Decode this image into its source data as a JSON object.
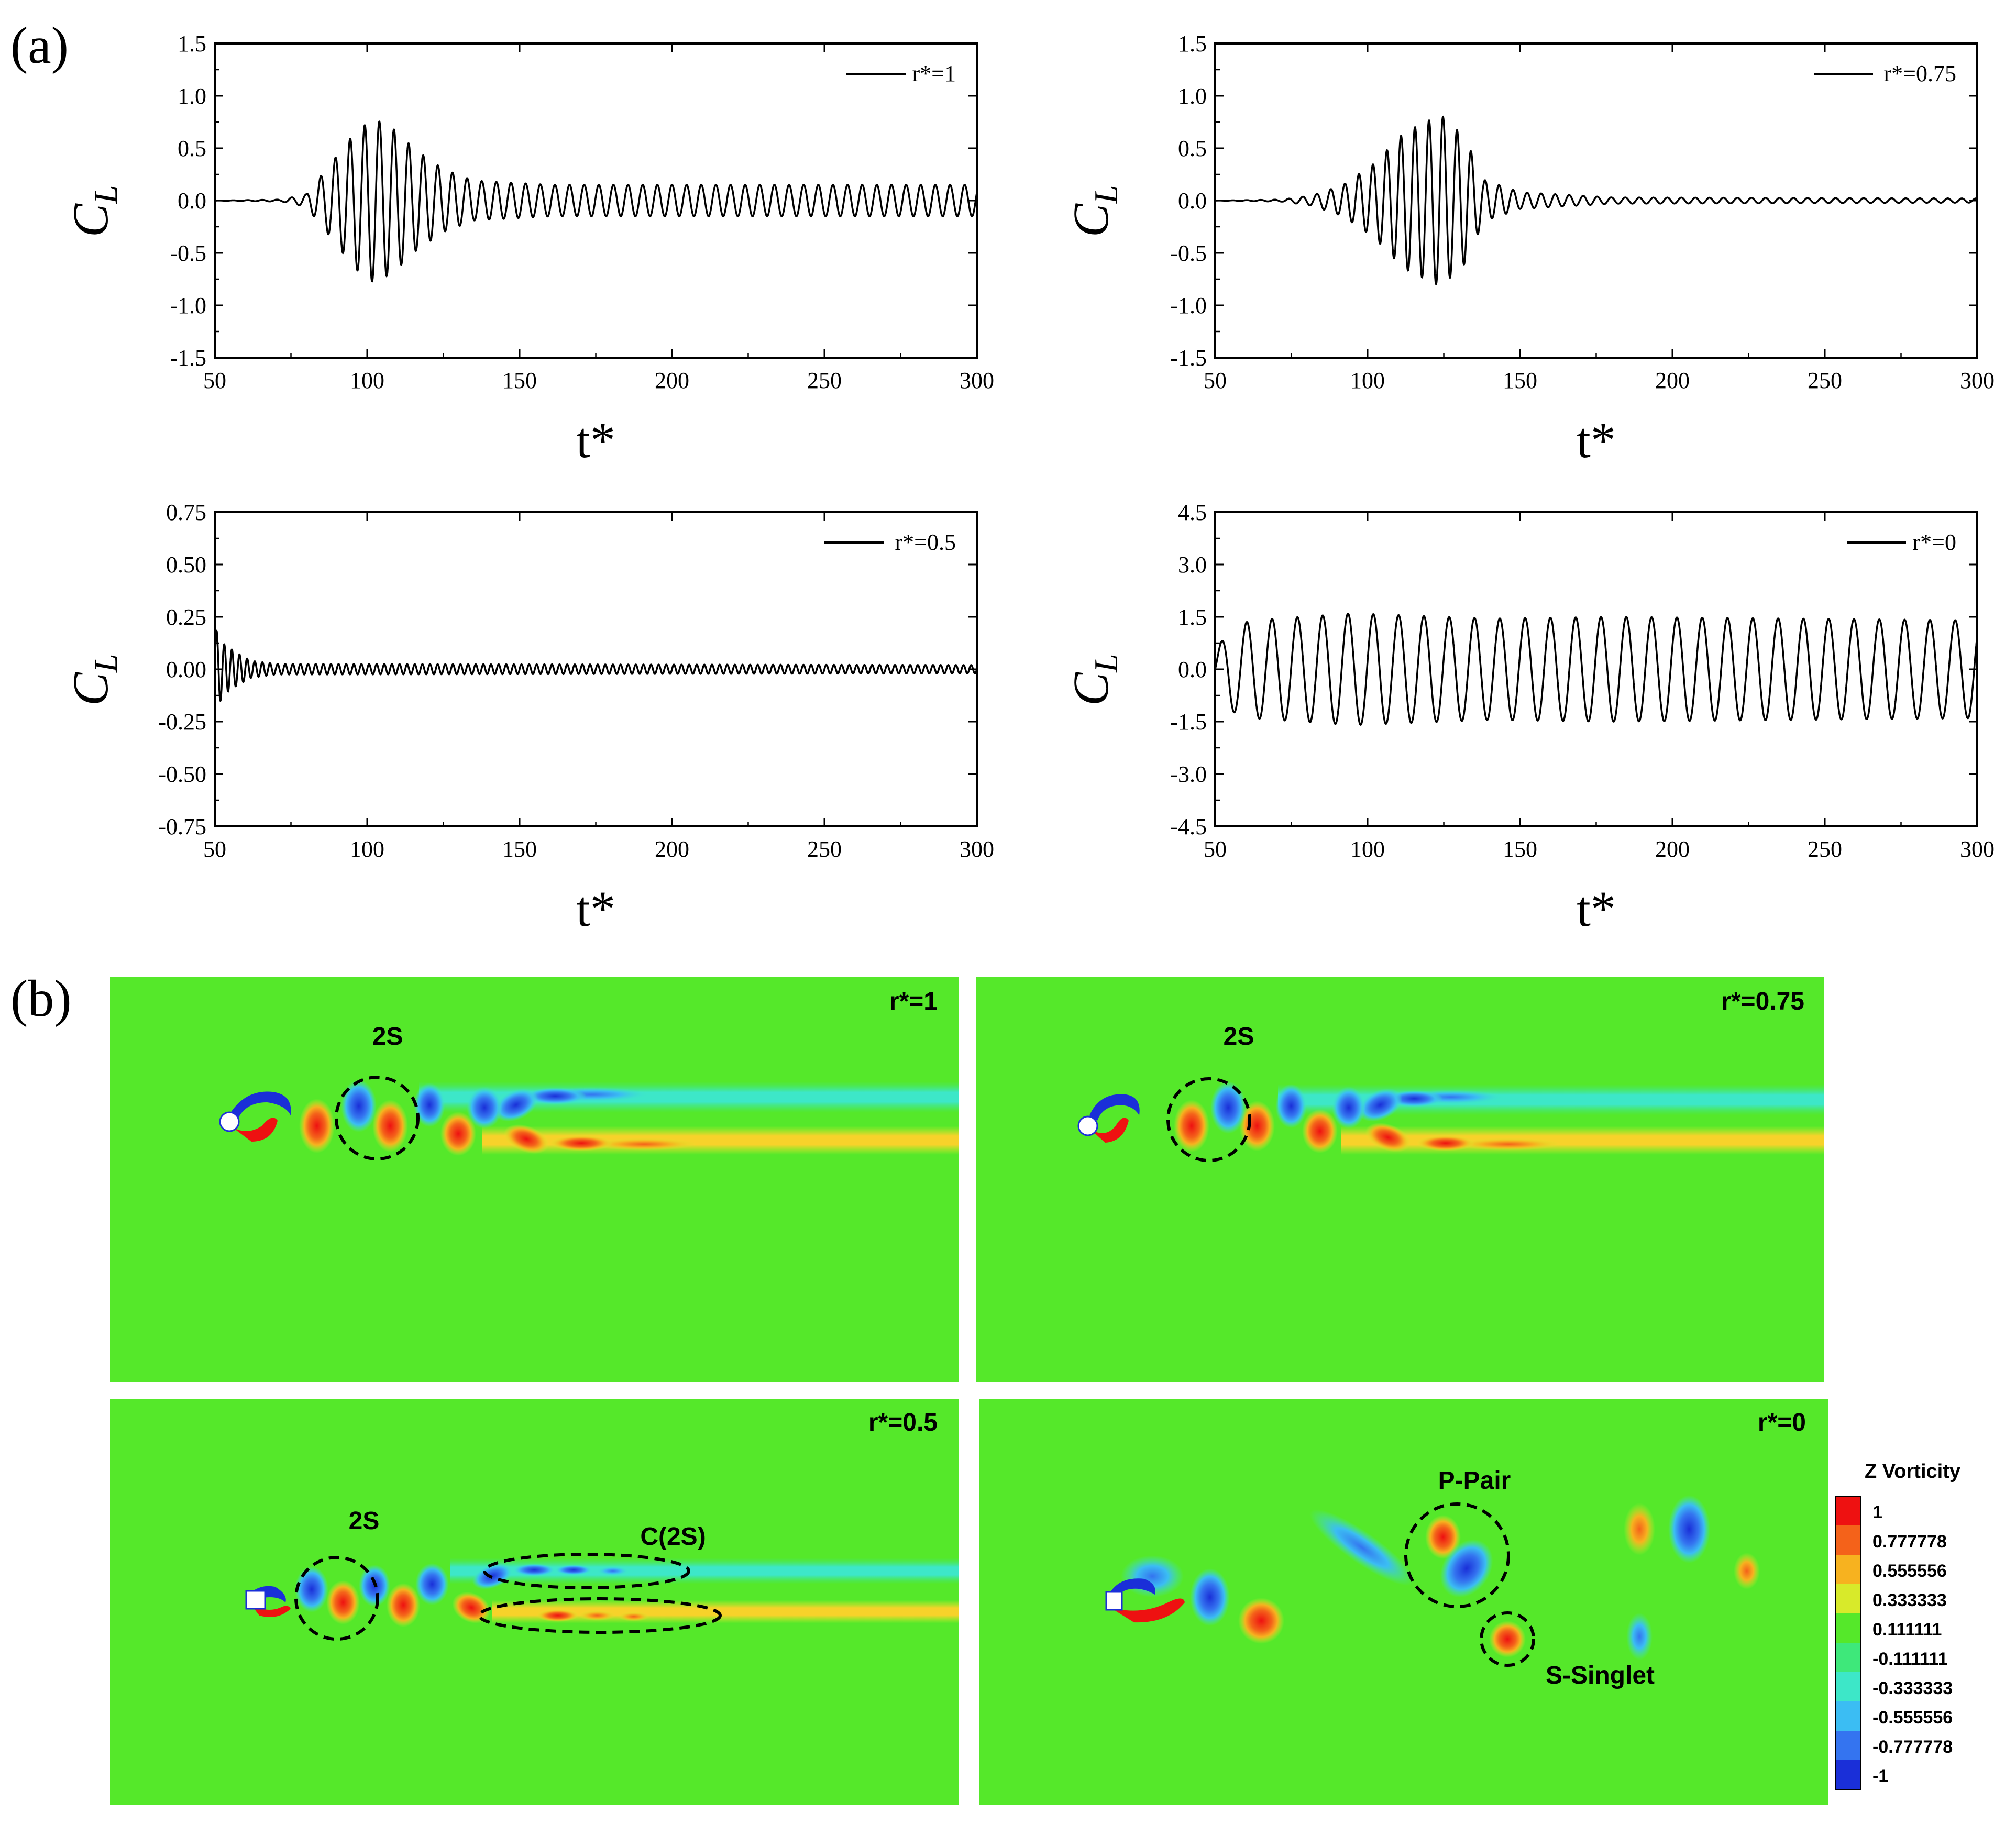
{
  "panel_labels": {
    "a": "(a)",
    "b": "(b)"
  },
  "chart_data": [
    {
      "type": "line",
      "legend": "r*=1",
      "xlabel": "t*",
      "ylabel": "C",
      "ylabel_sub": "L",
      "xlim": [
        50,
        300
      ],
      "ylim": [
        -1.5,
        1.5
      ],
      "xticks": [
        "50",
        "100",
        "150",
        "200",
        "250",
        "300"
      ],
      "yticks": [
        "1.5",
        "1.0",
        "0.5",
        "0.0",
        "-0.5",
        "-1.0",
        "-1.5"
      ],
      "signal": {
        "segments": [
          {
            "t": 50,
            "amp": 0.0
          },
          {
            "t": 72,
            "amp": 0.01
          },
          {
            "t": 80,
            "amp": 0.06
          },
          {
            "t": 88,
            "amp": 0.35
          },
          {
            "t": 96,
            "amp": 0.65
          },
          {
            "t": 102,
            "amp": 0.78
          },
          {
            "t": 108,
            "amp": 0.7
          },
          {
            "t": 116,
            "amp": 0.48
          },
          {
            "t": 125,
            "amp": 0.3
          },
          {
            "t": 135,
            "amp": 0.19
          },
          {
            "t": 160,
            "amp": 0.15
          },
          {
            "t": 300,
            "amp": 0.15
          }
        ],
        "period": 4.8
      }
    },
    {
      "type": "line",
      "legend": "r*=0.75",
      "xlabel": "t*",
      "ylabel": "C",
      "ylabel_sub": "L",
      "xlim": [
        50,
        300
      ],
      "ylim": [
        -1.5,
        1.5
      ],
      "xticks": [
        "50",
        "100",
        "150",
        "200",
        "250",
        "300"
      ],
      "yticks": [
        "1.5",
        "1.0",
        "0.5",
        "0.0",
        "-0.5",
        "-1.0",
        "-1.5"
      ],
      "signal": {
        "segments": [
          {
            "t": 50,
            "amp": 0.0
          },
          {
            "t": 72,
            "amp": 0.01
          },
          {
            "t": 82,
            "amp": 0.05
          },
          {
            "t": 92,
            "amp": 0.15
          },
          {
            "t": 102,
            "amp": 0.35
          },
          {
            "t": 112,
            "amp": 0.65
          },
          {
            "t": 124,
            "amp": 0.82
          },
          {
            "t": 132,
            "amp": 0.6
          },
          {
            "t": 138,
            "amp": 0.2
          },
          {
            "t": 150,
            "amp": 0.08
          },
          {
            "t": 180,
            "amp": 0.03
          },
          {
            "t": 300,
            "amp": 0.02
          }
        ],
        "period": 4.6
      }
    },
    {
      "type": "line",
      "legend": "r*=0.5",
      "xlabel": "t*",
      "ylabel": "C",
      "ylabel_sub": "L",
      "xlim": [
        50,
        300
      ],
      "ylim": [
        -0.75,
        0.75
      ],
      "xticks": [
        "50",
        "100",
        "150",
        "200",
        "250",
        "300"
      ],
      "yticks": [
        "0.75",
        "0.50",
        "0.25",
        "0.00",
        "-0.25",
        "-0.50",
        "-0.75"
      ],
      "signal": {
        "segments": [
          {
            "t": 50,
            "amp": 0.2
          },
          {
            "t": 53,
            "amp": 0.12
          },
          {
            "t": 57,
            "amp": 0.08
          },
          {
            "t": 62,
            "amp": 0.04
          },
          {
            "t": 70,
            "amp": 0.025
          },
          {
            "t": 300,
            "amp": 0.02
          }
        ],
        "period": 2.5
      }
    },
    {
      "type": "line",
      "legend": "r*=0",
      "xlabel": "t*",
      "ylabel": "C",
      "ylabel_sub": "L",
      "xlim": [
        50,
        300
      ],
      "ylim": [
        -4.5,
        4.5
      ],
      "xticks": [
        "50",
        "100",
        "150",
        "200",
        "250",
        "300"
      ],
      "yticks": [
        "4.5",
        "3.0",
        "1.5",
        "0.0",
        "-1.5",
        "-3.0",
        "-4.5"
      ],
      "signal": {
        "segments": [
          {
            "t": 50,
            "amp": 0.5
          },
          {
            "t": 55,
            "amp": 1.2
          },
          {
            "t": 62,
            "amp": 1.4
          },
          {
            "t": 95,
            "amp": 1.6
          },
          {
            "t": 140,
            "amp": 1.45
          },
          {
            "t": 180,
            "amp": 1.5
          },
          {
            "t": 300,
            "amp": 1.4
          }
        ],
        "period": 8.3
      }
    }
  ],
  "vorticity_panels": [
    {
      "tag": "r*=1",
      "annotations": [
        "2S"
      ]
    },
    {
      "tag": "r*=0.75",
      "annotations": [
        "2S"
      ]
    },
    {
      "tag": "r*=0.5",
      "annotations": [
        "2S",
        "C(2S)"
      ]
    },
    {
      "tag": "r*=0",
      "annotations": [
        "P-Pair",
        "S-Singlet"
      ]
    }
  ],
  "colorbar": {
    "title": "Z Vorticity",
    "levels": [
      "1",
      "0.777778",
      "0.555556",
      "0.333333",
      "0.111111",
      "-0.111111",
      "-0.333333",
      "-0.555556",
      "-0.777778",
      "-1"
    ],
    "colors": [
      "#ee1111",
      "#f4621a",
      "#f7b21f",
      "#d8ea2a",
      "#55e82a",
      "#3ee87a",
      "#3de7c8",
      "#3bbdf3",
      "#3474f0",
      "#1a2fd8"
    ]
  }
}
